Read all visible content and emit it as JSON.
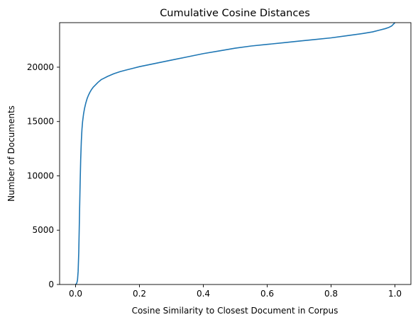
{
  "chart_data": {
    "type": "line",
    "title": "Cumulative Cosine Distances",
    "xlabel": "Cosine Similarity to Closest Document in Corpus",
    "ylabel": "Number of Documents",
    "xlim": [
      -0.05,
      1.05
    ],
    "ylim": [
      0,
      24100
    ],
    "x_ticks": [
      0.0,
      0.2,
      0.4,
      0.6,
      0.8,
      1.0
    ],
    "x_tick_labels": [
      "0.0",
      "0.2",
      "0.4",
      "0.6",
      "0.8",
      "1.0"
    ],
    "y_ticks": [
      0,
      5000,
      10000,
      15000,
      20000
    ],
    "y_tick_labels": [
      "0",
      "5000",
      "10000",
      "15000",
      "20000"
    ],
    "grid": false,
    "series": [
      {
        "color": "#1f77b4",
        "x": [
          0.0,
          0.002,
          0.004,
          0.006,
          0.008,
          0.01,
          0.012,
          0.014,
          0.016,
          0.018,
          0.02,
          0.022,
          0.025,
          0.028,
          0.032,
          0.036,
          0.04,
          0.045,
          0.05,
          0.055,
          0.06,
          0.07,
          0.08,
          0.09,
          0.1,
          0.12,
          0.14,
          0.16,
          0.18,
          0.2,
          0.25,
          0.3,
          0.35,
          0.4,
          0.45,
          0.5,
          0.55,
          0.6,
          0.65,
          0.7,
          0.75,
          0.8,
          0.85,
          0.9,
          0.93,
          0.95,
          0.97,
          0.98,
          0.99,
          0.995,
          1.0
        ],
        "values": [
          0,
          50,
          150,
          400,
          1200,
          3000,
          6000,
          9000,
          11500,
          13200,
          14300,
          15000,
          15700,
          16200,
          16700,
          17100,
          17400,
          17700,
          17950,
          18150,
          18300,
          18600,
          18850,
          19000,
          19150,
          19400,
          19600,
          19750,
          19900,
          20050,
          20350,
          20650,
          20950,
          21250,
          21500,
          21750,
          21950,
          22100,
          22250,
          22400,
          22550,
          22700,
          22900,
          23100,
          23250,
          23400,
          23550,
          23650,
          23800,
          23950,
          24100
        ]
      }
    ]
  }
}
